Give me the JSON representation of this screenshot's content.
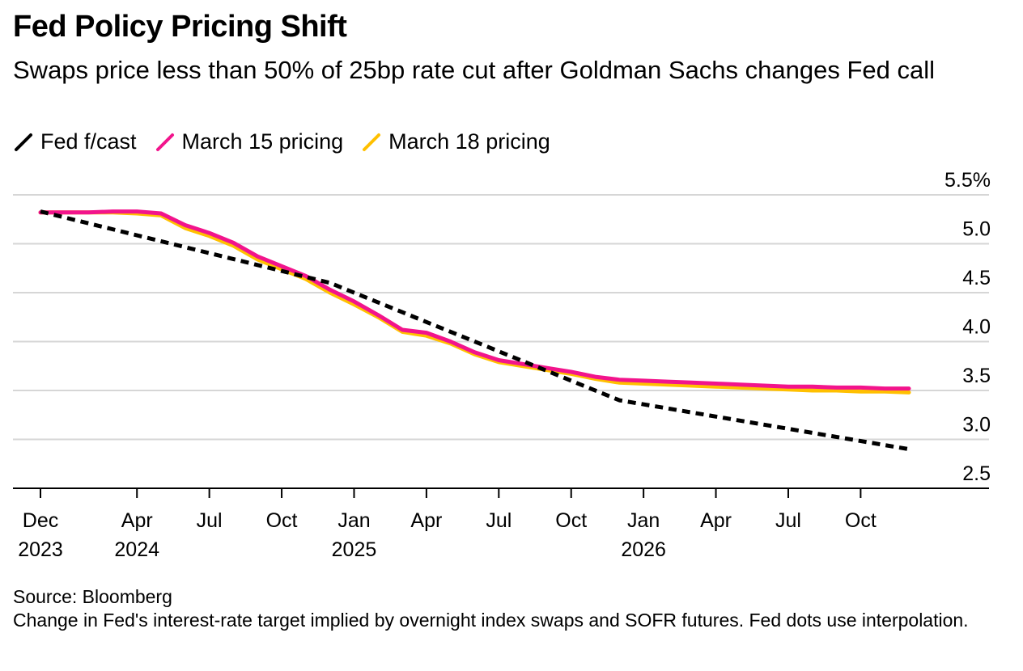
{
  "title": "Fed Policy Pricing Shift",
  "subtitle": "Swaps price less than 50% of 25bp rate cut after Goldman Sachs changes Fed call",
  "source": "Source: Bloomberg",
  "note": "Change in Fed's interest-rate target implied by overnight index swaps and SOFR futures. Fed dots use interpolation.",
  "chart_data": {
    "type": "line",
    "x_unit": "month",
    "xlim": [
      "2023-12",
      "2026-12"
    ],
    "ylim": [
      2.5,
      5.5
    ],
    "y_ticks": [
      {
        "value": 5.5,
        "label": "5.5%"
      },
      {
        "value": 5.0,
        "label": "5.0"
      },
      {
        "value": 4.5,
        "label": "4.5"
      },
      {
        "value": 4.0,
        "label": "4.0"
      },
      {
        "value": 3.5,
        "label": "3.5"
      },
      {
        "value": 3.0,
        "label": "3.0"
      },
      {
        "value": 2.5,
        "label": "2.5"
      }
    ],
    "x_ticks": [
      {
        "date": "2023-12",
        "label": "Dec",
        "sublabel": "2023"
      },
      {
        "date": "2024-04",
        "label": "Apr",
        "sublabel": "2024"
      },
      {
        "date": "2024-07",
        "label": "Jul",
        "sublabel": ""
      },
      {
        "date": "2024-10",
        "label": "Oct",
        "sublabel": ""
      },
      {
        "date": "2025-01",
        "label": "Jan",
        "sublabel": "2025"
      },
      {
        "date": "2025-04",
        "label": "Apr",
        "sublabel": ""
      },
      {
        "date": "2025-07",
        "label": "Jul",
        "sublabel": ""
      },
      {
        "date": "2025-10",
        "label": "Oct",
        "sublabel": ""
      },
      {
        "date": "2026-01",
        "label": "Jan",
        "sublabel": "2026"
      },
      {
        "date": "2026-04",
        "label": "Apr",
        "sublabel": ""
      },
      {
        "date": "2026-07",
        "label": "Jul",
        "sublabel": ""
      },
      {
        "date": "2026-10",
        "label": "Oct",
        "sublabel": ""
      }
    ],
    "grid": "horizontal",
    "legend_position": "top-left",
    "series": [
      {
        "name": "Fed f/cast",
        "color": "#000000",
        "style": "dashed",
        "points": [
          [
            "2023-12",
            5.33
          ],
          [
            "2024-12",
            4.6
          ],
          [
            "2025-12",
            3.4
          ],
          [
            "2026-12",
            2.9
          ]
        ]
      },
      {
        "name": "March 18 pricing",
        "color": "#ffc000",
        "style": "solid",
        "points": [
          [
            "2023-12",
            5.32
          ],
          [
            "2024-01",
            5.32
          ],
          [
            "2024-02",
            5.32
          ],
          [
            "2024-03",
            5.32
          ],
          [
            "2024-04",
            5.31
          ],
          [
            "2024-05",
            5.29
          ],
          [
            "2024-06",
            5.16
          ],
          [
            "2024-07",
            5.08
          ],
          [
            "2024-08",
            4.98
          ],
          [
            "2024-09",
            4.84
          ],
          [
            "2024-10",
            4.74
          ],
          [
            "2024-11",
            4.64
          ],
          [
            "2024-12",
            4.5
          ],
          [
            "2025-01",
            4.38
          ],
          [
            "2025-02",
            4.25
          ],
          [
            "2025-03",
            4.1
          ],
          [
            "2025-04",
            4.06
          ],
          [
            "2025-05",
            3.98
          ],
          [
            "2025-06",
            3.87
          ],
          [
            "2025-07",
            3.79
          ],
          [
            "2025-08",
            3.75
          ],
          [
            "2025-09",
            3.71
          ],
          [
            "2025-10",
            3.67
          ],
          [
            "2025-11",
            3.62
          ],
          [
            "2025-12",
            3.58
          ],
          [
            "2026-01",
            3.57
          ],
          [
            "2026-02",
            3.56
          ],
          [
            "2026-03",
            3.55
          ],
          [
            "2026-04",
            3.54
          ],
          [
            "2026-05",
            3.53
          ],
          [
            "2026-06",
            3.52
          ],
          [
            "2026-07",
            3.51
          ],
          [
            "2026-08",
            3.5
          ],
          [
            "2026-09",
            3.5
          ],
          [
            "2026-10",
            3.49
          ],
          [
            "2026-11",
            3.49
          ],
          [
            "2026-12",
            3.48
          ]
        ]
      },
      {
        "name": "March 15 pricing",
        "color": "#f2148c",
        "style": "solid",
        "points": [
          [
            "2023-12",
            5.32
          ],
          [
            "2024-01",
            5.32
          ],
          [
            "2024-02",
            5.32
          ],
          [
            "2024-03",
            5.33
          ],
          [
            "2024-04",
            5.33
          ],
          [
            "2024-05",
            5.31
          ],
          [
            "2024-06",
            5.19
          ],
          [
            "2024-07",
            5.11
          ],
          [
            "2024-08",
            5.01
          ],
          [
            "2024-09",
            4.87
          ],
          [
            "2024-10",
            4.77
          ],
          [
            "2024-11",
            4.67
          ],
          [
            "2024-12",
            4.53
          ],
          [
            "2025-01",
            4.41
          ],
          [
            "2025-02",
            4.27
          ],
          [
            "2025-03",
            4.12
          ],
          [
            "2025-04",
            4.09
          ],
          [
            "2025-05",
            4.0
          ],
          [
            "2025-06",
            3.89
          ],
          [
            "2025-07",
            3.81
          ],
          [
            "2025-08",
            3.77
          ],
          [
            "2025-09",
            3.73
          ],
          [
            "2025-10",
            3.69
          ],
          [
            "2025-11",
            3.64
          ],
          [
            "2025-12",
            3.61
          ],
          [
            "2026-01",
            3.6
          ],
          [
            "2026-02",
            3.59
          ],
          [
            "2026-03",
            3.58
          ],
          [
            "2026-04",
            3.57
          ],
          [
            "2026-05",
            3.56
          ],
          [
            "2026-06",
            3.55
          ],
          [
            "2026-07",
            3.54
          ],
          [
            "2026-08",
            3.54
          ],
          [
            "2026-09",
            3.53
          ],
          [
            "2026-10",
            3.53
          ],
          [
            "2026-11",
            3.52
          ],
          [
            "2026-12",
            3.52
          ]
        ]
      }
    ],
    "legend_order": [
      "Fed f/cast",
      "March 15 pricing",
      "March 18 pricing"
    ]
  }
}
